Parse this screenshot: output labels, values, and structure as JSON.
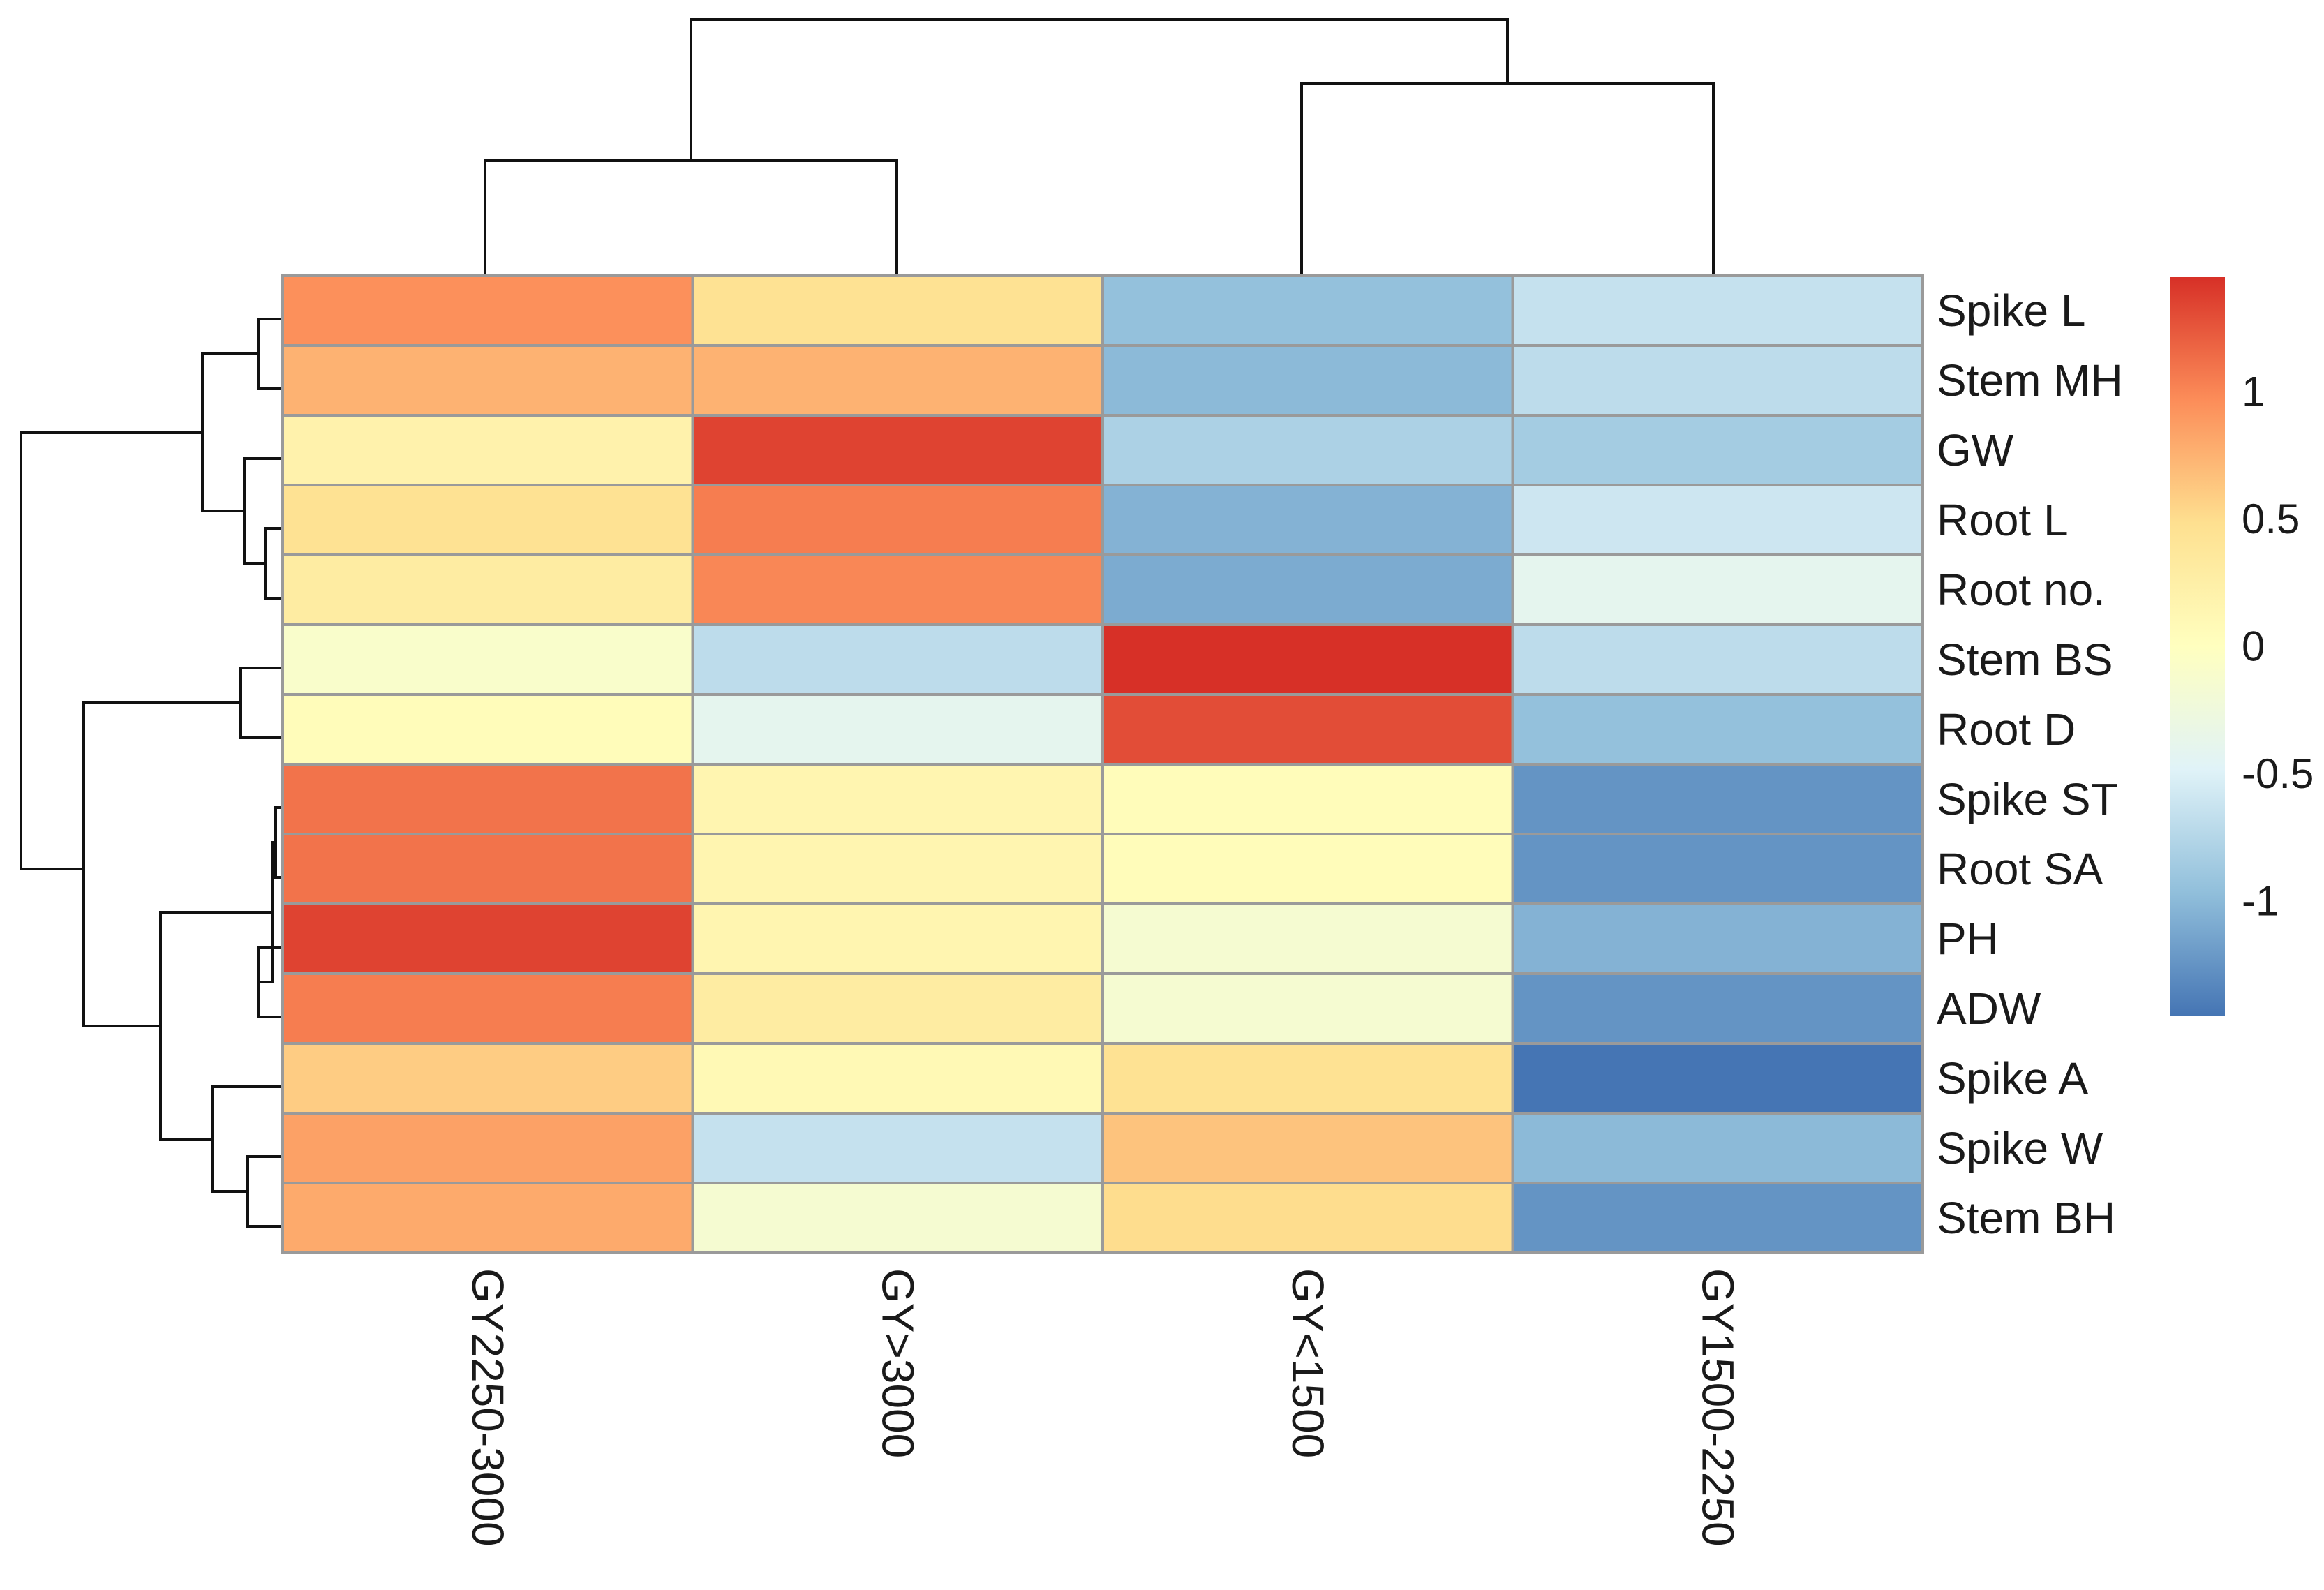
{
  "chart_data": {
    "type": "heatmap",
    "columns": [
      "GY2250-3000",
      "GY>3000",
      "GY<1500",
      "GY1500-2250"
    ],
    "rows": [
      "Spike L",
      "Stem MH",
      "GW",
      "Root L",
      "Root no.",
      "Stem BS",
      "Root D",
      "Spike ST",
      "Root SA",
      "PH",
      "ADW",
      "Spike A",
      "Spike W",
      "Stem BH"
    ],
    "values": [
      [
        0.95,
        0.45,
        -0.95,
        -0.65
      ],
      [
        0.75,
        0.75,
        -1.0,
        -0.7
      ],
      [
        0.2,
        1.35,
        -0.8,
        -0.85
      ],
      [
        0.45,
        1.05,
        -1.05,
        -0.6
      ],
      [
        0.3,
        1.0,
        -1.1,
        -0.4
      ],
      [
        -0.1,
        -0.7,
        1.45,
        -0.7
      ],
      [
        0.05,
        -0.4,
        1.3,
        -0.95
      ],
      [
        1.1,
        0.15,
        0.05,
        -1.25
      ],
      [
        1.1,
        0.15,
        0.05,
        -1.25
      ],
      [
        1.35,
        0.15,
        -0.15,
        -1.05
      ],
      [
        1.05,
        0.3,
        -0.15,
        -1.25
      ],
      [
        0.6,
        0.1,
        0.45,
        -1.45
      ],
      [
        0.85,
        -0.65,
        0.65,
        -1.0
      ],
      [
        0.8,
        -0.15,
        0.5,
        -1.25
      ]
    ],
    "legend": {
      "min": -1.45,
      "max": 1.45,
      "ticks": [
        1,
        0.5,
        0,
        -0.5,
        -1
      ],
      "tick_labels": [
        "1",
        "0.5",
        "0",
        "-0.5",
        "-1"
      ],
      "colors": [
        "#4575b4",
        "#91bfdb",
        "#e0f3f8",
        "#ffffbf",
        "#fee090",
        "#fc8d59",
        "#d73027"
      ]
    },
    "row_dendrogram": true,
    "column_dendrogram": true
  }
}
